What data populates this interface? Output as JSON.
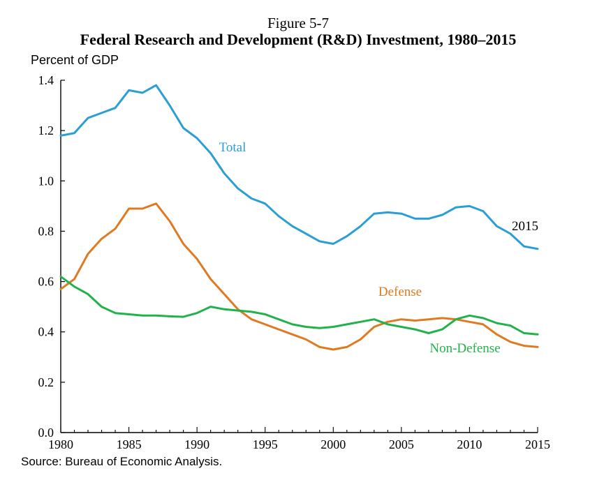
{
  "figure_label": "Figure 5-7",
  "source": "Source: Bureau of Economic Analysis.",
  "colors": {
    "total": "#2a9fd6",
    "defense": "#e07a22",
    "non_defense": "#22b24c",
    "axis": "#000000"
  },
  "chart_data": {
    "type": "line",
    "title": "Federal Research and Development (R&D) Investment, 1980–2015",
    "ylabel": "Percent of GDP",
    "xlabel": "",
    "xlim": [
      1980,
      2015
    ],
    "ylim": [
      0,
      1.4
    ],
    "x_ticks": [
      1980,
      1985,
      1990,
      1995,
      2000,
      2005,
      2010,
      2015
    ],
    "y_ticks": [
      0.0,
      0.2,
      0.4,
      0.6,
      0.8,
      1.0,
      1.2,
      1.4
    ],
    "x_tick_labels": [
      "1980",
      "1985",
      "1990",
      "1995",
      "2000",
      "2005",
      "2010",
      "2015"
    ],
    "y_tick_labels": [
      "0.0",
      "0.2",
      "0.4",
      "0.6",
      "0.8",
      "1.0",
      "1.2",
      "1.4"
    ],
    "grid": false,
    "x": [
      1980,
      1981,
      1982,
      1983,
      1984,
      1985,
      1986,
      1987,
      1988,
      1989,
      1990,
      1991,
      1992,
      1993,
      1994,
      1995,
      1996,
      1997,
      1998,
      1999,
      2000,
      2001,
      2002,
      2003,
      2004,
      2005,
      2006,
      2007,
      2008,
      2009,
      2010,
      2011,
      2012,
      2013,
      2014,
      2015
    ],
    "series": [
      {
        "name": "Total",
        "key": "total",
        "values": [
          1.18,
          1.19,
          1.25,
          1.27,
          1.29,
          1.36,
          1.35,
          1.38,
          1.3,
          1.21,
          1.17,
          1.11,
          1.03,
          0.97,
          0.93,
          0.91,
          0.86,
          0.82,
          0.79,
          0.76,
          0.75,
          0.78,
          0.82,
          0.87,
          0.875,
          0.87,
          0.85,
          0.85,
          0.865,
          0.895,
          0.9,
          0.88,
          0.82,
          0.79,
          0.74,
          0.73
        ]
      },
      {
        "name": "Defense",
        "key": "defense",
        "values": [
          0.57,
          0.61,
          0.71,
          0.77,
          0.81,
          0.89,
          0.89,
          0.91,
          0.84,
          0.75,
          0.69,
          0.61,
          0.55,
          0.49,
          0.45,
          0.43,
          0.41,
          0.39,
          0.37,
          0.34,
          0.33,
          0.34,
          0.37,
          0.42,
          0.44,
          0.45,
          0.445,
          0.45,
          0.455,
          0.45,
          0.44,
          0.43,
          0.39,
          0.36,
          0.345,
          0.34
        ]
      },
      {
        "name": "Non-Defense",
        "key": "non_defense",
        "values": [
          0.62,
          0.58,
          0.55,
          0.5,
          0.475,
          0.47,
          0.465,
          0.465,
          0.462,
          0.46,
          0.475,
          0.5,
          0.49,
          0.485,
          0.48,
          0.47,
          0.45,
          0.43,
          0.42,
          0.415,
          0.42,
          0.43,
          0.44,
          0.45,
          0.43,
          0.42,
          0.41,
          0.395,
          0.41,
          0.45,
          0.465,
          0.455,
          0.435,
          0.425,
          0.395,
          0.39
        ]
      }
    ],
    "annotations": [
      {
        "text": "Total",
        "series": "total"
      },
      {
        "text": "Defense",
        "series": "defense"
      },
      {
        "text": "Non-Defense",
        "series": "non_defense"
      },
      {
        "text": "2015",
        "series": "total"
      }
    ]
  }
}
